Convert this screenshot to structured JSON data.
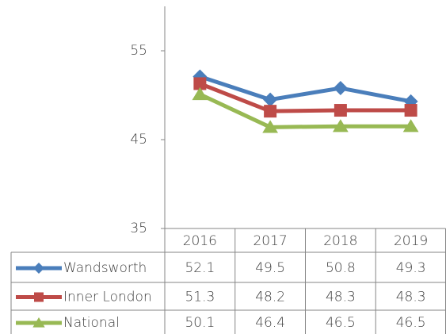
{
  "chart_data": {
    "type": "line",
    "categories": [
      "2016",
      "2017",
      "2018",
      "2019"
    ],
    "series": [
      {
        "name": "Wandsworth",
        "color": "#4a7ebb",
        "marker": "diamond",
        "values": [
          52.1,
          49.5,
          50.8,
          49.3
        ]
      },
      {
        "name": "Inner London",
        "color": "#be4b48",
        "marker": "square",
        "values": [
          51.3,
          48.2,
          48.3,
          48.3
        ]
      },
      {
        "name": "National",
        "color": "#98b954",
        "marker": "triangle",
        "values": [
          50.1,
          46.4,
          46.5,
          46.5
        ]
      }
    ],
    "ylim": [
      35,
      60
    ],
    "yticks": [
      35,
      45,
      55
    ],
    "grid": false,
    "legend": "table"
  }
}
